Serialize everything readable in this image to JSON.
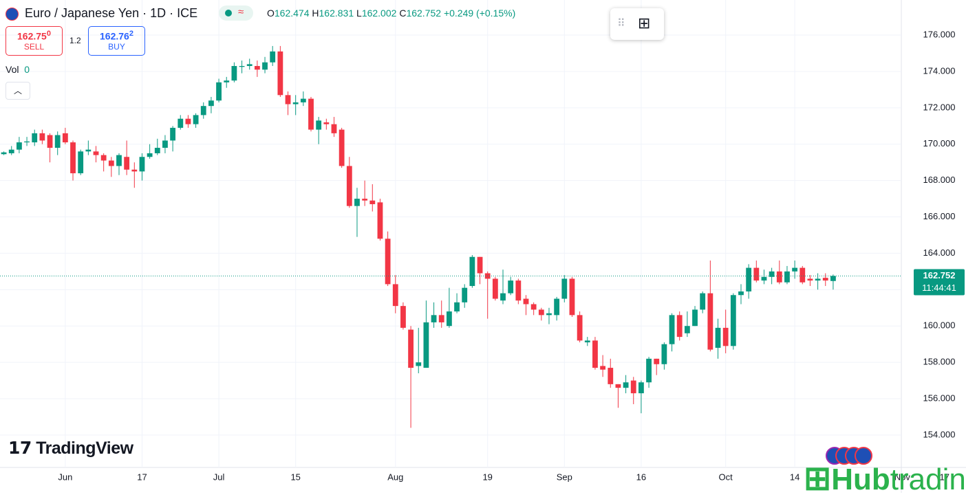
{
  "header": {
    "symbol": "Euro / Japanese Yen · 1D · ICE",
    "ohlc_labels": [
      "O",
      "H",
      "L",
      "C"
    ],
    "change": "+0.249 (+0.15%)",
    "sell": {
      "price": "162.75",
      "pip": "0",
      "label": "SELL"
    },
    "spread": "1.2",
    "buy": {
      "price": "162.76",
      "pip": "2",
      "label": "BUY"
    },
    "volume": {
      "label": "Vol",
      "value": 0
    },
    "countdown": "11:44:41",
    "logo": "TradingView",
    "watermark": {
      "a": "Hub",
      "b": "trading"
    }
  },
  "chart_data": {
    "type": "candlestick",
    "up_color": "#089981",
    "down_color": "#f23645",
    "grid": true,
    "last_price_line": true,
    "xlim": [
      -0.5,
      125.3
    ],
    "ylim": [
      152.22,
      177.93
    ],
    "xticks": [
      {
        "value": 8,
        "label": "Jun"
      },
      {
        "value": 18,
        "label": "17"
      },
      {
        "value": 28,
        "label": "Jul"
      },
      {
        "value": 38,
        "label": "15"
      },
      {
        "value": 51,
        "label": "Aug"
      },
      {
        "value": 63,
        "label": "19"
      },
      {
        "value": 73,
        "label": "Sep"
      },
      {
        "value": 83,
        "label": "16"
      },
      {
        "value": 94,
        "label": "Oct"
      },
      {
        "value": 103,
        "label": "14"
      },
      {
        "value": 117,
        "label": "Nov"
      },
      {
        "value": 122.5,
        "label": "17"
      }
    ],
    "yticks": [
      {
        "value": 154,
        "label": "154.000"
      },
      {
        "value": 156,
        "label": "156.000"
      },
      {
        "value": 158,
        "label": "158.000"
      },
      {
        "value": 160,
        "label": "160.000"
      },
      {
        "value": 162,
        "label": "162.000"
      },
      {
        "value": 164,
        "label": "164.000"
      },
      {
        "value": 166,
        "label": "166.000"
      },
      {
        "value": 168,
        "label": "168.000"
      },
      {
        "value": 170,
        "label": "170.000"
      },
      {
        "value": 172,
        "label": "172.000"
      },
      {
        "value": 174,
        "label": "174.000"
      },
      {
        "value": 176,
        "label": "176.000"
      }
    ],
    "open": [
      169.45,
      169.5,
      169.7,
      170.1,
      170.1,
      170.6,
      170.5,
      169.8,
      170.6,
      170.1,
      168.4,
      169.6,
      169.6,
      169.4,
      169.1,
      168.8,
      169.3,
      168.6,
      168.5,
      169.3,
      169.5,
      169.8,
      170.2,
      170.9,
      171.4,
      171.1,
      171.6,
      172.1,
      172.4,
      173.4,
      173.5,
      174.25,
      174.3,
      174.3,
      174.1,
      174.5,
      175.1,
      172.7,
      172.2,
      172.3,
      172.5,
      170.8,
      171.2,
      171.1,
      170.8,
      168.8,
      166.6,
      167.0,
      166.9,
      166.8,
      164.8,
      162.3,
      161.1,
      159.8,
      157.8,
      157.7,
      160.2,
      160.6,
      160.0,
      160.8,
      161.3,
      162.2,
      163.8,
      162.9,
      162.6,
      161.4,
      161.8,
      162.5,
      161.5,
      161.2,
      160.9,
      160.6,
      160.6,
      161.5,
      162.6,
      160.6,
      159.1,
      159.2,
      157.8,
      157.7,
      156.8,
      156.6,
      157.0,
      156.3,
      156.9,
      158.2,
      157.9,
      159.0,
      160.6,
      159.6,
      160.0,
      160.9,
      161.8,
      158.8,
      159.9,
      158.9,
      161.7,
      161.9,
      163.2,
      162.5,
      162.7,
      163.0,
      162.4,
      163.0,
      163.2,
      162.6,
      162.5,
      162.65,
      162.474
    ],
    "high": [
      169.6,
      169.9,
      170.4,
      170.4,
      170.8,
      170.8,
      170.6,
      170.7,
      170.9,
      170.2,
      169.7,
      170.2,
      169.9,
      169.5,
      169.3,
      169.5,
      170.2,
      169.0,
      169.5,
      170.0,
      170.3,
      170.5,
      171.0,
      171.6,
      171.6,
      171.7,
      172.3,
      172.6,
      173.6,
      173.7,
      174.5,
      174.6,
      174.7,
      174.6,
      174.8,
      175.4,
      175.4,
      172.9,
      172.7,
      172.9,
      172.6,
      171.5,
      171.4,
      171.5,
      170.9,
      169.3,
      167.6,
      168.0,
      167.8,
      167.0,
      165.2,
      162.8,
      161.3,
      160.0,
      159.9,
      161.4,
      161.3,
      161.4,
      162.1,
      161.8,
      162.3,
      163.9,
      163.8,
      163.0,
      162.7,
      163.1,
      162.7,
      162.6,
      161.7,
      161.3,
      161.0,
      161.0,
      161.6,
      162.8,
      162.7,
      160.8,
      159.4,
      159.4,
      158.4,
      158.2,
      156.8,
      157.3,
      157.2,
      157.0,
      158.3,
      158.2,
      159.1,
      160.7,
      160.8,
      160.8,
      161.1,
      161.9,
      163.6,
      160.4,
      160.9,
      161.8,
      162.3,
      163.4,
      163.6,
      163.1,
      163.2,
      163.6,
      163.3,
      163.6,
      163.3,
      162.8,
      162.9,
      162.9,
      162.831
    ],
    "low": [
      169.4,
      169.4,
      169.5,
      169.9,
      169.9,
      170.0,
      169.0,
      169.4,
      170.0,
      168.0,
      168.3,
      169.4,
      169.0,
      168.5,
      168.2,
      168.3,
      168.3,
      167.6,
      168.0,
      169.2,
      169.4,
      169.5,
      169.6,
      170.8,
      170.9,
      170.9,
      171.4,
      171.7,
      172.3,
      173.1,
      173.4,
      173.9,
      174.1,
      173.7,
      173.9,
      174.3,
      172.6,
      171.6,
      171.6,
      172.1,
      170.7,
      170.0,
      170.8,
      170.4,
      168.7,
      166.5,
      164.9,
      166.6,
      166.3,
      164.7,
      162.2,
      160.7,
      159.8,
      154.4,
      157.4,
      157.7,
      159.9,
      159.9,
      159.9,
      160.7,
      161.0,
      162.1,
      162.3,
      160.4,
      161.4,
      161.2,
      161.7,
      161.2,
      160.6,
      160.6,
      160.3,
      160.1,
      160.3,
      161.3,
      160.5,
      159.1,
      158.9,
      157.6,
      157.2,
      156.6,
      155.5,
      156.3,
      155.7,
      155.2,
      156.6,
      157.3,
      157.6,
      158.6,
      159.2,
      159.4,
      160.0,
      160.7,
      158.6,
      158.2,
      158.5,
      158.7,
      161.2,
      161.5,
      162.4,
      162.3,
      162.3,
      162.3,
      162.3,
      162.6,
      162.3,
      162.2,
      162.0,
      162.2,
      162.002
    ],
    "close": [
      169.55,
      169.7,
      170.1,
      170.15,
      170.6,
      170.2,
      169.8,
      170.5,
      170.1,
      168.4,
      169.6,
      169.7,
      169.4,
      169.1,
      168.8,
      169.4,
      168.6,
      168.5,
      169.3,
      169.5,
      169.8,
      170.2,
      170.9,
      171.4,
      171.1,
      171.6,
      172.1,
      172.4,
      173.4,
      173.5,
      174.3,
      174.3,
      174.4,
      174.1,
      174.5,
      175.1,
      172.7,
      172.2,
      172.3,
      172.5,
      170.8,
      171.3,
      171.1,
      170.6,
      168.8,
      166.6,
      167.0,
      166.9,
      166.7,
      164.8,
      162.3,
      161.1,
      159.9,
      157.7,
      158.0,
      160.2,
      160.6,
      160.2,
      160.8,
      161.3,
      162.1,
      163.8,
      162.9,
      162.6,
      161.5,
      161.8,
      162.5,
      161.4,
      161.2,
      160.9,
      160.6,
      160.7,
      161.5,
      162.6,
      160.6,
      159.2,
      159.2,
      157.7,
      157.6,
      156.8,
      156.6,
      156.9,
      156.3,
      156.9,
      158.2,
      157.9,
      159.0,
      160.6,
      159.4,
      160.0,
      160.9,
      161.8,
      158.7,
      159.9,
      158.9,
      161.7,
      161.9,
      163.2,
      162.5,
      162.7,
      163.0,
      162.4,
      163.0,
      163.2,
      162.4,
      162.5,
      162.6,
      162.5,
      162.752
    ]
  }
}
